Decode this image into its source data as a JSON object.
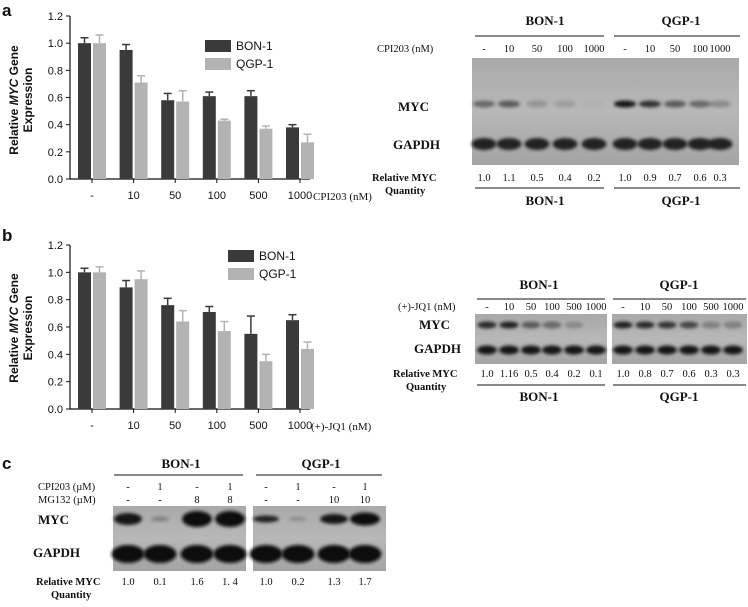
{
  "panels": {
    "a": "a",
    "b": "b",
    "c": "c"
  },
  "chart_data": [
    {
      "type": "bar",
      "panel": "a",
      "categories": [
        "-",
        "10",
        "50",
        "100",
        "500",
        "1000"
      ],
      "xlabel": "CPI203 (nM)",
      "ylabel_parts": [
        "Relative ",
        "MYC",
        " Gene",
        "Expression"
      ],
      "ylim": [
        0,
        1.2
      ],
      "yticks": [
        "0.0",
        "0.2",
        "0.4",
        "0.6",
        "0.8",
        "1.0",
        "1.2"
      ],
      "series": [
        {
          "name": "BON-1",
          "color": "#3a3a3a",
          "values": [
            1.0,
            0.95,
            0.58,
            0.61,
            0.61,
            0.38
          ],
          "errors": [
            0.04,
            0.04,
            0.05,
            0.03,
            0.04,
            0.02
          ]
        },
        {
          "name": "QGP-1",
          "color": "#b3b3b3",
          "values": [
            1.0,
            0.71,
            0.57,
            0.43,
            0.37,
            0.27
          ],
          "errors": [
            0.06,
            0.05,
            0.08,
            0.01,
            0.02,
            0.06
          ]
        }
      ]
    },
    {
      "type": "bar",
      "panel": "b",
      "categories": [
        "-",
        "10",
        "50",
        "100",
        "500",
        "1000"
      ],
      "xlabel": "(+)-JQ1 (nM)",
      "ylabel_parts": [
        "Relative ",
        "MYC",
        " Gene",
        "Expression"
      ],
      "ylim": [
        0,
        1.2
      ],
      "yticks": [
        "0.0",
        "0.2",
        "0.4",
        "0.6",
        "0.8",
        "1.0",
        "1.2"
      ],
      "series": [
        {
          "name": "BON-1",
          "color": "#3a3a3a",
          "values": [
            1.0,
            0.89,
            0.76,
            0.71,
            0.55,
            0.65
          ],
          "errors": [
            0.03,
            0.05,
            0.05,
            0.04,
            0.13,
            0.04
          ]
        },
        {
          "name": "QGP-1",
          "color": "#b3b3b3",
          "values": [
            1.0,
            0.95,
            0.64,
            0.57,
            0.35,
            0.44
          ],
          "errors": [
            0.04,
            0.06,
            0.08,
            0.07,
            0.05,
            0.05
          ]
        }
      ]
    }
  ],
  "blot_a": {
    "cell_lines": [
      "BON-1",
      "QGP-1"
    ],
    "treatment_label": "CPI203 (nM)",
    "doses": [
      "-",
      "10",
      "50",
      "100",
      "1000",
      "-",
      "10",
      "50",
      "100",
      "1000"
    ],
    "myc_label": "MYC",
    "gapdh_label": "GAPDH",
    "quant_label_1": "Relative MYC",
    "quant_label_2": "Quantity",
    "quant": [
      "1.0",
      "1.1",
      "0.5",
      "0.4",
      "0.2",
      "1.0",
      "0.9",
      "0.7",
      "0.6",
      "0.3"
    ]
  },
  "blot_b": {
    "cell_lines": [
      "BON-1",
      "QGP-1"
    ],
    "treatment_label": "(+)-JQ1 (nM)",
    "doses": [
      "-",
      "10",
      "50",
      "100",
      "500",
      "1000",
      "-",
      "10",
      "50",
      "100",
      "500",
      "1000"
    ],
    "myc_label": "MYC",
    "gapdh_label": "GAPDH",
    "quant_label_1": "Relative MYC",
    "quant_label_2": "Quantity",
    "quant": [
      "1.0",
      "1.16",
      "0.5",
      "0.4",
      "0.2",
      "0.1",
      "1.0",
      "0.8",
      "0.7",
      "0.6",
      "0.3",
      "0.3"
    ]
  },
  "blot_c": {
    "cell_lines": [
      "BON-1",
      "QGP-1"
    ],
    "row1_label": "CPI203 (µM)",
    "row2_label": "MG132 (µM)",
    "row1": [
      "-",
      "1",
      "-",
      "1",
      "-",
      "1",
      "-",
      "1"
    ],
    "row2": [
      "-",
      "-",
      "8",
      "8",
      "-",
      "-",
      "10",
      "10"
    ],
    "myc_label": "MYC",
    "gapdh_label": "GAPDH",
    "quant_label_1": "Relative MYC",
    "quant_label_2": "Quantity",
    "quant": [
      "1.0",
      "0.1",
      "1.6",
      "1. 4",
      "1.0",
      "0.2",
      "1.3",
      "1.7"
    ]
  }
}
